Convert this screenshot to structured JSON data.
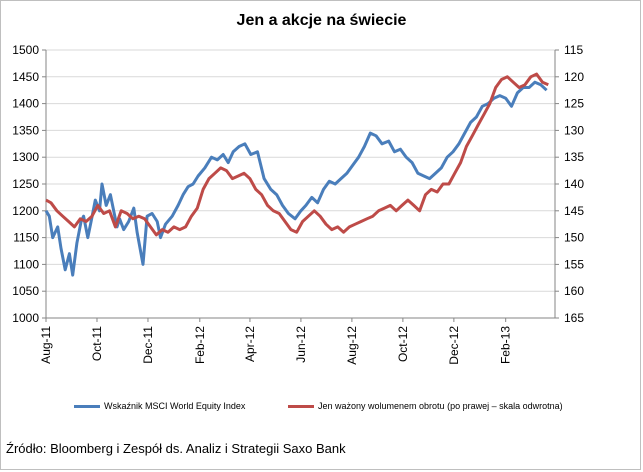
{
  "title": "Jen a akcje na świecie",
  "source": "Źródło: Bloomberg i Zespół ds. Analiz i Strategii Saxo Bank",
  "colors": {
    "msci": "#4a7ebb",
    "yen": "#be4b48",
    "grid": "#d9d9d9",
    "axis": "#868686"
  },
  "chart_data": {
    "type": "line",
    "title": "Jen a akcje na świecie",
    "x_tick_labels": [
      "Aug-11",
      "Oct-11",
      "Dec-11",
      "Feb-12",
      "Apr-12",
      "Jun-12",
      "Aug-12",
      "Oct-12",
      "Dec-12",
      "Feb-13"
    ],
    "y_left": {
      "ylim": [
        1000,
        1500
      ],
      "ticks": [
        1000,
        1050,
        1100,
        1150,
        1200,
        1250,
        1300,
        1350,
        1400,
        1450,
        1500
      ]
    },
    "y_right": {
      "ylim": [
        115,
        165
      ],
      "inverted": true,
      "ticks": [
        115,
        120,
        125,
        130,
        135,
        140,
        145,
        150,
        155,
        160,
        165
      ]
    },
    "grid": "horizontal",
    "legend_position": "bottom",
    "series": [
      {
        "name": "Wskaźnik MSCI World Equity Index",
        "axis": "left",
        "x": [
          "2011-08-01",
          "2011-08-05",
          "2011-08-09",
          "2011-08-15",
          "2011-08-19",
          "2011-08-24",
          "2011-08-29",
          "2011-09-02",
          "2011-09-07",
          "2011-09-12",
          "2011-09-15",
          "2011-09-20",
          "2011-09-24",
          "2011-09-29",
          "2011-10-04",
          "2011-10-07",
          "2011-10-12",
          "2011-10-17",
          "2011-10-21",
          "2011-10-25",
          "2011-10-28",
          "2011-11-02",
          "2011-11-08",
          "2011-11-14",
          "2011-11-18",
          "2011-11-25",
          "2011-11-30",
          "2011-12-06",
          "2011-12-12",
          "2011-12-16",
          "2011-12-22",
          "2011-12-30",
          "2012-01-06",
          "2012-01-12",
          "2012-01-18",
          "2012-01-24",
          "2012-01-30",
          "2012-02-07",
          "2012-02-15",
          "2012-02-22",
          "2012-02-29",
          "2012-03-06",
          "2012-03-12",
          "2012-03-19",
          "2012-03-26",
          "2012-04-02",
          "2012-04-10",
          "2012-04-18",
          "2012-04-26",
          "2012-05-03",
          "2012-05-10",
          "2012-05-17",
          "2012-05-25",
          "2012-06-01",
          "2012-06-07",
          "2012-06-14",
          "2012-06-21",
          "2012-06-28",
          "2012-07-05",
          "2012-07-12",
          "2012-07-19",
          "2012-07-26",
          "2012-08-02",
          "2012-08-09",
          "2012-08-16",
          "2012-08-23",
          "2012-08-30",
          "2012-09-06",
          "2012-09-14",
          "2012-09-21",
          "2012-09-28",
          "2012-10-05",
          "2012-10-12",
          "2012-10-19",
          "2012-10-26",
          "2012-11-02",
          "2012-11-09",
          "2012-11-16",
          "2012-11-23",
          "2012-11-30",
          "2012-12-07",
          "2012-12-14",
          "2012-12-21",
          "2012-12-28",
          "2013-01-04",
          "2013-01-11",
          "2013-01-18",
          "2013-01-25",
          "2013-02-01",
          "2013-02-08",
          "2013-02-15",
          "2013-02-22",
          "2013-03-01",
          "2013-03-08",
          "2013-03-15",
          "2013-03-22"
        ],
        "values": [
          1200,
          1190,
          1150,
          1170,
          1130,
          1090,
          1120,
          1080,
          1140,
          1180,
          1190,
          1150,
          1180,
          1220,
          1200,
          1250,
          1210,
          1230,
          1200,
          1170,
          1185,
          1165,
          1180,
          1205,
          1160,
          1100,
          1190,
          1195,
          1180,
          1150,
          1175,
          1190,
          1210,
          1230,
          1245,
          1250,
          1265,
          1280,
          1300,
          1295,
          1305,
          1290,
          1310,
          1320,
          1325,
          1305,
          1310,
          1260,
          1240,
          1230,
          1210,
          1195,
          1185,
          1200,
          1210,
          1225,
          1215,
          1240,
          1255,
          1250,
          1260,
          1270,
          1285,
          1300,
          1320,
          1345,
          1340,
          1325,
          1330,
          1310,
          1315,
          1300,
          1290,
          1270,
          1265,
          1260,
          1270,
          1280,
          1300,
          1310,
          1325,
          1345,
          1365,
          1375,
          1395,
          1400,
          1410,
          1415,
          1410,
          1395,
          1420,
          1430,
          1430,
          1440,
          1435,
          1425
        ]
      },
      {
        "name": "Jen ważony wolumenem obrotu (po prawej – skala odwrotna)",
        "axis": "right",
        "x": [
          "2011-08-01",
          "2011-08-07",
          "2011-08-14",
          "2011-08-21",
          "2011-08-28",
          "2011-09-04",
          "2011-09-11",
          "2011-09-18",
          "2011-09-25",
          "2011-10-02",
          "2011-10-09",
          "2011-10-16",
          "2011-10-23",
          "2011-10-30",
          "2011-11-06",
          "2011-11-13",
          "2011-11-20",
          "2011-11-27",
          "2011-12-04",
          "2011-12-11",
          "2011-12-18",
          "2011-12-25",
          "2012-01-01",
          "2012-01-08",
          "2012-01-15",
          "2012-01-22",
          "2012-01-29",
          "2012-02-05",
          "2012-02-12",
          "2012-02-19",
          "2012-02-26",
          "2012-03-04",
          "2012-03-11",
          "2012-03-18",
          "2012-03-25",
          "2012-04-01",
          "2012-04-08",
          "2012-04-15",
          "2012-04-22",
          "2012-04-29",
          "2012-05-06",
          "2012-05-13",
          "2012-05-20",
          "2012-05-27",
          "2012-06-03",
          "2012-06-10",
          "2012-06-17",
          "2012-06-24",
          "2012-07-01",
          "2012-07-08",
          "2012-07-15",
          "2012-07-22",
          "2012-07-29",
          "2012-08-05",
          "2012-08-12",
          "2012-08-19",
          "2012-08-26",
          "2012-09-02",
          "2012-09-09",
          "2012-09-16",
          "2012-09-23",
          "2012-09-30",
          "2012-10-07",
          "2012-10-14",
          "2012-10-21",
          "2012-10-28",
          "2012-11-04",
          "2012-11-11",
          "2012-11-18",
          "2012-11-25",
          "2012-12-02",
          "2012-12-09",
          "2012-12-16",
          "2012-12-23",
          "2012-12-30",
          "2013-01-06",
          "2013-01-13",
          "2013-01-20",
          "2013-01-27",
          "2013-02-03",
          "2013-02-10",
          "2013-02-17",
          "2013-02-24",
          "2013-03-03",
          "2013-03-10",
          "2013-03-17",
          "2013-03-24"
        ],
        "values": [
          143,
          143.5,
          145,
          146,
          147,
          148,
          146.5,
          147,
          146,
          144,
          145.5,
          145,
          148,
          145,
          145.5,
          146.5,
          146,
          146.5,
          148,
          149.5,
          148.5,
          149,
          148,
          148.5,
          148,
          146,
          144.5,
          141,
          139,
          138,
          137,
          137.5,
          139,
          138.5,
          138,
          139,
          141,
          142,
          144,
          145,
          145.5,
          147,
          148.5,
          149,
          147,
          146,
          145,
          146,
          147.5,
          148.5,
          148,
          149,
          148,
          147.5,
          147,
          146.5,
          146,
          145,
          144.5,
          144,
          145,
          144,
          143,
          144,
          145,
          142,
          141,
          141.5,
          140,
          140,
          138,
          136,
          133,
          131,
          129,
          127,
          125,
          122,
          120.5,
          120,
          121,
          122,
          121.5,
          120,
          119.5,
          121,
          121.5
        ]
      }
    ]
  }
}
